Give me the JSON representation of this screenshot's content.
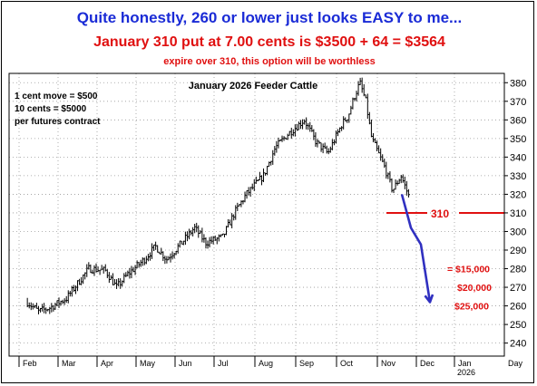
{
  "header": {
    "line1": "Quite honestly, 260 or lower just looks EASY to me...",
    "line2": "January 310 put at 7.00 cents is $3500 + 64 = $3564",
    "line3": "expire over 310, this option will be worthless"
  },
  "notes": [
    "1 cent move = $500",
    "10 cents = $5000",
    "per futures contract"
  ],
  "chart_data": {
    "type": "bar",
    "subtype": "ohlc",
    "title": "January 2026 Feeder Cattle",
    "ylim": [
      233,
      385
    ],
    "yticks": [
      240,
      250,
      260,
      270,
      280,
      290,
      300,
      310,
      320,
      330,
      340,
      350,
      360,
      370,
      380
    ],
    "x_months": [
      "Feb",
      "Mar",
      "Apr",
      "May",
      "Jun",
      "Jul",
      "Aug",
      "Sep",
      "Oct",
      "Nov",
      "Dec",
      "Jan"
    ],
    "x_year_label": "2026",
    "x_unit_label": "Day",
    "grid": true,
    "colors": {
      "header_blue": "#1a2bd6",
      "red": "#e01010",
      "arrow": "#3030c0",
      "bars": "#000000"
    },
    "price_path": [
      [
        "Feb",
        262
      ],
      [
        "Feb",
        257
      ],
      [
        "Feb",
        259
      ],
      [
        "Mar",
        264
      ],
      [
        "Mar",
        272
      ],
      [
        "Mar",
        280
      ],
      [
        "Apr",
        279
      ],
      [
        "Apr",
        270
      ],
      [
        "Apr",
        277
      ],
      [
        "May",
        285
      ],
      [
        "May",
        292
      ],
      [
        "May",
        285
      ],
      [
        "Jun",
        295
      ],
      [
        "Jun",
        302
      ],
      [
        "Jun",
        294
      ],
      [
        "Jul",
        297
      ],
      [
        "Jul",
        310
      ],
      [
        "Jul",
        320
      ],
      [
        "Aug",
        330
      ],
      [
        "Aug",
        345
      ],
      [
        "Aug",
        352
      ],
      [
        "Sep",
        360
      ],
      [
        "Sep",
        348
      ],
      [
        "Sep",
        342
      ],
      [
        "Oct",
        358
      ],
      [
        "Oct",
        362
      ],
      [
        "Oct",
        372
      ],
      [
        "Oct",
        380
      ],
      [
        "Oct",
        370
      ],
      [
        "Oct",
        350
      ],
      [
        "Nov",
        335
      ],
      [
        "Nov",
        322
      ],
      [
        "Nov",
        330
      ],
      [
        "Nov",
        318
      ]
    ],
    "strike_line": {
      "value": 310,
      "label": "310"
    },
    "projection_arrow": [
      [
        "Nov",
        320
      ],
      [
        "Nov",
        302
      ],
      [
        "Dec",
        293
      ],
      [
        "Dec",
        262
      ]
    ],
    "profit_labels": [
      {
        "text": "= $15,000",
        "y": 280
      },
      {
        "text": "$20,000",
        "y": 270
      },
      {
        "text": "$25,000",
        "y": 260
      }
    ]
  }
}
